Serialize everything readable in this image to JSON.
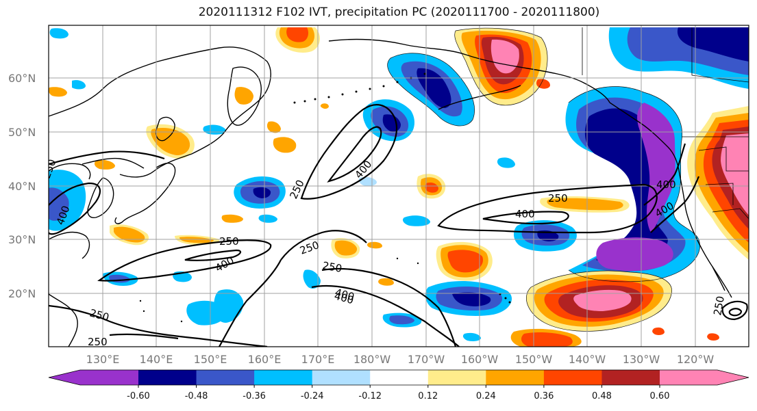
{
  "title": "2020111312 F102 IVT, precipitation PC (2020111700 - 2020111800)",
  "lat_labels": [
    "60°N",
    "50°N",
    "40°N",
    "30°N",
    "20°N"
  ],
  "lon_labels": [
    "130°E",
    "140°E",
    "150°E",
    "160°E",
    "170°E",
    "180°W",
    "170°W",
    "160°W",
    "150°W",
    "140°W",
    "130°W",
    "120°W"
  ],
  "contour_labels": [
    "250",
    "400",
    "250",
    "400",
    "250",
    "400",
    "250",
    "400",
    "250",
    "250",
    "400",
    "250",
    "400",
    "400",
    "400",
    "250",
    "250"
  ],
  "colorbar": {
    "colors": [
      "#9932cc",
      "#00008b",
      "#3a57c9",
      "#00bfff",
      "#b0e0ff",
      "#ffffff",
      "#ffec8b",
      "#ffa500",
      "#ff4500",
      "#b22222",
      "#ff83b4"
    ],
    "tick_labels": [
      "-0.60",
      "-0.48",
      "-0.36",
      "-0.24",
      "-0.12",
      "0.12",
      "0.24",
      "0.36",
      "0.48",
      "0.60"
    ]
  }
}
